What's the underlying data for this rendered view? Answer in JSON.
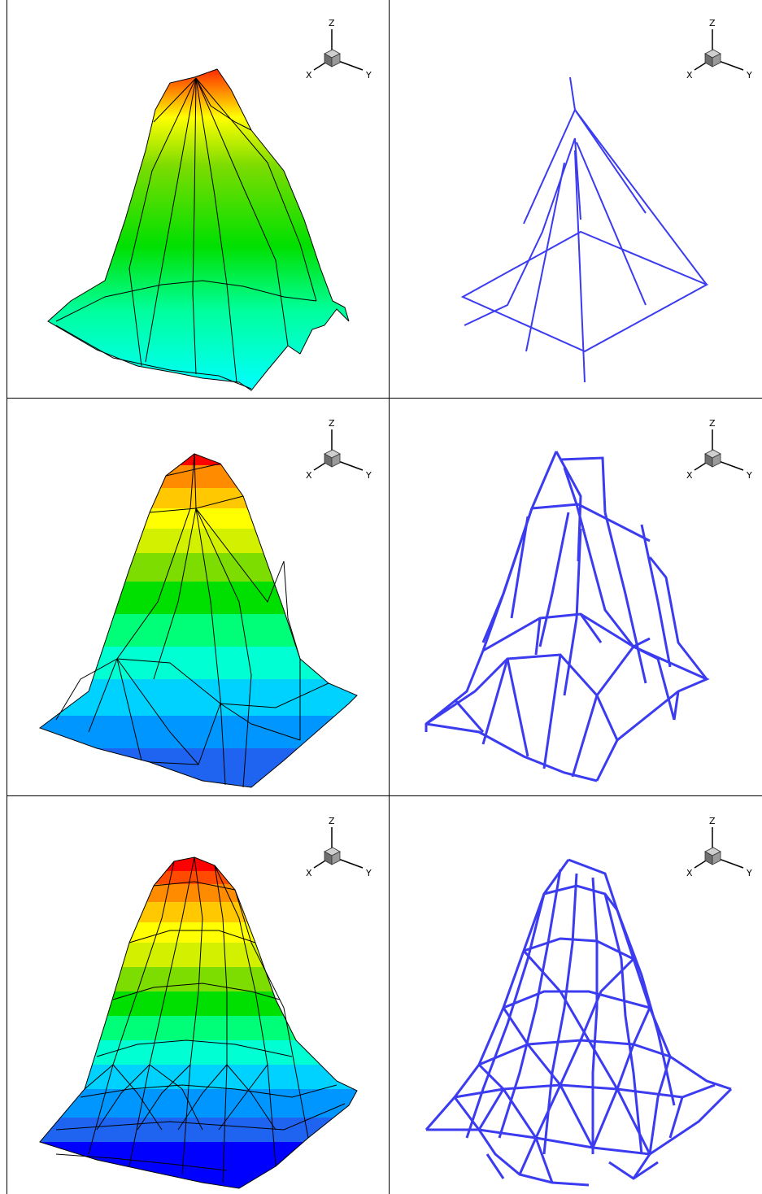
{
  "axis_triad": {
    "z": "Z",
    "x": "X",
    "y": "Y"
  },
  "colors": {
    "background": "#ffffff",
    "frame": "#000000",
    "mesh_lines": "#000000",
    "wireframe": "#3b3bf0",
    "contour_scale": [
      "#0000ff",
      "#1e64f0",
      "#0096ff",
      "#00d2ff",
      "#00ffd2",
      "#00ff78",
      "#00e000",
      "#7ddc00",
      "#d2f000",
      "#ffff00",
      "#ffc800",
      "#ff8c00",
      "#ff4a00",
      "#ff0000"
    ]
  },
  "panels": [
    {
      "row": 1,
      "column": 1,
      "kind": "contour-surface",
      "mesh_level": 1,
      "contour_bands": "continuous"
    },
    {
      "row": 1,
      "column": 2,
      "kind": "wireframe",
      "mesh_level": 1
    },
    {
      "row": 2,
      "column": 1,
      "kind": "contour-surface",
      "mesh_level": 2,
      "contour_bands": 10
    },
    {
      "row": 2,
      "column": 2,
      "kind": "wireframe",
      "mesh_level": 2
    },
    {
      "row": 3,
      "column": 1,
      "kind": "contour-surface",
      "mesh_level": 3,
      "contour_bands": 12
    },
    {
      "row": 3,
      "column": 2,
      "kind": "wireframe",
      "mesh_level": 3
    }
  ]
}
